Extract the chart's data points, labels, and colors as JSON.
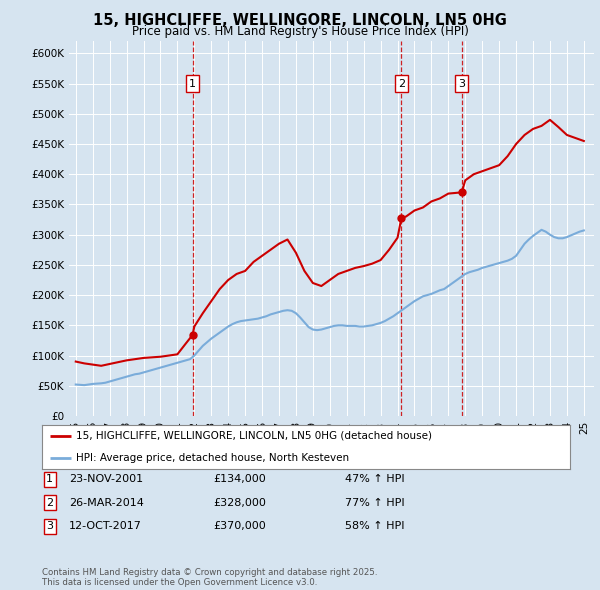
{
  "title_line1": "15, HIGHCLIFFE, WELLINGORE, LINCOLN, LN5 0HG",
  "title_line2": "Price paid vs. HM Land Registry's House Price Index (HPI)",
  "plot_bg_color": "#d6e4f0",
  "fig_bg_color": "#d6e4f0",
  "ylim": [
    0,
    620000
  ],
  "yticks": [
    0,
    50000,
    100000,
    150000,
    200000,
    250000,
    300000,
    350000,
    400000,
    450000,
    500000,
    550000,
    600000
  ],
  "xlim_start": 1994.6,
  "xlim_end": 2025.6,
  "sale_color": "#cc0000",
  "hpi_color": "#7aacda",
  "vline_color": "#cc0000",
  "sale_dates": [
    2001.896,
    2014.23,
    2017.786
  ],
  "sale_prices": [
    134000,
    328000,
    370000
  ],
  "sale_labels": [
    "1",
    "2",
    "3"
  ],
  "legend_sale_label": "15, HIGHCLIFFE, WELLINGORE, LINCOLN, LN5 0HG (detached house)",
  "legend_hpi_label": "HPI: Average price, detached house, North Kesteven",
  "transactions": [
    {
      "label": "1",
      "date": "23-NOV-2001",
      "price": "£134,000",
      "change": "47% ↑ HPI"
    },
    {
      "label": "2",
      "date": "26-MAR-2014",
      "price": "£328,000",
      "change": "77% ↑ HPI"
    },
    {
      "label": "3",
      "date": "12-OCT-2017",
      "price": "£370,000",
      "change": "58% ↑ HPI"
    }
  ],
  "footer": "Contains HM Land Registry data © Crown copyright and database right 2025.\nThis data is licensed under the Open Government Licence v3.0.",
  "hpi_years": [
    1995.0,
    1995.25,
    1995.5,
    1995.75,
    1996.0,
    1996.25,
    1996.5,
    1996.75,
    1997.0,
    1997.25,
    1997.5,
    1997.75,
    1998.0,
    1998.25,
    1998.5,
    1998.75,
    1999.0,
    1999.25,
    1999.5,
    1999.75,
    2000.0,
    2000.25,
    2000.5,
    2000.75,
    2001.0,
    2001.25,
    2001.5,
    2001.75,
    2002.0,
    2002.25,
    2002.5,
    2002.75,
    2003.0,
    2003.25,
    2003.5,
    2003.75,
    2004.0,
    2004.25,
    2004.5,
    2004.75,
    2005.0,
    2005.25,
    2005.5,
    2005.75,
    2006.0,
    2006.25,
    2006.5,
    2006.75,
    2007.0,
    2007.25,
    2007.5,
    2007.75,
    2008.0,
    2008.25,
    2008.5,
    2008.75,
    2009.0,
    2009.25,
    2009.5,
    2009.75,
    2010.0,
    2010.25,
    2010.5,
    2010.75,
    2011.0,
    2011.25,
    2011.5,
    2011.75,
    2012.0,
    2012.25,
    2012.5,
    2012.75,
    2013.0,
    2013.25,
    2013.5,
    2013.75,
    2014.0,
    2014.25,
    2014.5,
    2014.75,
    2015.0,
    2015.25,
    2015.5,
    2015.75,
    2016.0,
    2016.25,
    2016.5,
    2016.75,
    2017.0,
    2017.25,
    2017.5,
    2017.75,
    2018.0,
    2018.25,
    2018.5,
    2018.75,
    2019.0,
    2019.25,
    2019.5,
    2019.75,
    2020.0,
    2020.25,
    2020.5,
    2020.75,
    2021.0,
    2021.25,
    2021.5,
    2021.75,
    2022.0,
    2022.25,
    2022.5,
    2022.75,
    2023.0,
    2023.25,
    2023.5,
    2023.75,
    2024.0,
    2024.25,
    2024.5,
    2024.75,
    2025.0
  ],
  "hpi_values": [
    52000,
    51500,
    51000,
    52000,
    53000,
    53500,
    54000,
    55000,
    57000,
    59000,
    61000,
    63000,
    65000,
    67000,
    69000,
    70000,
    72000,
    74000,
    76000,
    78000,
    80000,
    82000,
    84000,
    86000,
    88000,
    90000,
    92000,
    94000,
    100000,
    108000,
    116000,
    122000,
    128000,
    133000,
    138000,
    143000,
    148000,
    152000,
    155000,
    157000,
    158000,
    159000,
    160000,
    161000,
    163000,
    165000,
    168000,
    170000,
    172000,
    174000,
    175000,
    174000,
    170000,
    163000,
    155000,
    147000,
    143000,
    142000,
    143000,
    145000,
    147000,
    149000,
    150000,
    150000,
    149000,
    149000,
    149000,
    148000,
    148000,
    149000,
    150000,
    152000,
    154000,
    157000,
    161000,
    165000,
    170000,
    175000,
    180000,
    185000,
    190000,
    194000,
    198000,
    200000,
    202000,
    205000,
    208000,
    210000,
    215000,
    220000,
    225000,
    230000,
    235000,
    238000,
    240000,
    242000,
    245000,
    247000,
    249000,
    251000,
    253000,
    255000,
    257000,
    260000,
    265000,
    275000,
    285000,
    292000,
    298000,
    303000,
    308000,
    305000,
    300000,
    296000,
    294000,
    294000,
    296000,
    299000,
    302000,
    305000,
    307000
  ],
  "sale_line_years": [
    1995.0,
    1995.5,
    1996.0,
    1996.5,
    1997.0,
    1997.5,
    1998.0,
    1998.5,
    1999.0,
    1999.5,
    2000.0,
    2000.5,
    2001.0,
    2001.5,
    2001.896,
    2002.0,
    2002.5,
    2003.0,
    2003.5,
    2004.0,
    2004.5,
    2005.0,
    2005.5,
    2006.0,
    2006.5,
    2007.0,
    2007.5,
    2008.0,
    2008.5,
    2009.0,
    2009.5,
    2010.0,
    2010.5,
    2011.0,
    2011.5,
    2012.0,
    2012.5,
    2013.0,
    2013.5,
    2014.0,
    2014.23,
    2014.5,
    2015.0,
    2015.5,
    2016.0,
    2016.5,
    2017.0,
    2017.786,
    2018.0,
    2018.5,
    2019.0,
    2019.5,
    2020.0,
    2020.5,
    2021.0,
    2021.5,
    2022.0,
    2022.5,
    2023.0,
    2023.5,
    2024.0,
    2024.5,
    2025.0
  ],
  "sale_line_values": [
    90000,
    87000,
    85000,
    83000,
    86000,
    89000,
    92000,
    94000,
    96000,
    97000,
    98000,
    100000,
    102000,
    120000,
    134000,
    148000,
    170000,
    190000,
    210000,
    225000,
    235000,
    240000,
    255000,
    265000,
    275000,
    285000,
    292000,
    270000,
    240000,
    220000,
    215000,
    225000,
    235000,
    240000,
    245000,
    248000,
    252000,
    258000,
    275000,
    295000,
    328000,
    330000,
    340000,
    345000,
    355000,
    360000,
    368000,
    370000,
    390000,
    400000,
    405000,
    410000,
    415000,
    430000,
    450000,
    465000,
    475000,
    480000,
    490000,
    478000,
    465000,
    460000,
    455000
  ]
}
